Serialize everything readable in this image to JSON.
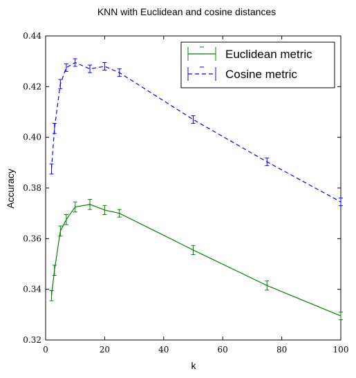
{
  "chart_data": {
    "type": "line",
    "title": "KNN with Euclidean and cosine distances",
    "xlabel": "k",
    "ylabel": "Accuracy",
    "xlim": [
      0,
      100
    ],
    "ylim": [
      0.32,
      0.44
    ],
    "x_ticks": [
      "0",
      "20",
      "40",
      "60",
      "80",
      "100"
    ],
    "y_ticks": [
      "0.32",
      "0.34",
      "0.36",
      "0.38",
      "0.40",
      "0.42",
      "0.44"
    ],
    "grid": false,
    "legend_position": "top-right",
    "series": [
      {
        "name": "Euclidean metric",
        "color": "#008000",
        "linestyle": "solid",
        "x": [
          2,
          3,
          5,
          7,
          10,
          15,
          20,
          25,
          50,
          75,
          100
        ],
        "y": [
          0.3375,
          0.3475,
          0.363,
          0.3675,
          0.3725,
          0.3735,
          0.3713,
          0.37,
          0.3555,
          0.3415,
          0.3295
        ],
        "err": [
          0.002,
          0.002,
          0.002,
          0.002,
          0.002,
          0.002,
          0.0018,
          0.0015,
          0.0018,
          0.0018,
          0.0015
        ]
      },
      {
        "name": "Cosine metric",
        "color": "#0000ff",
        "linestyle": "dashed",
        "x": [
          2,
          3,
          5,
          7,
          10,
          15,
          20,
          25,
          50,
          75,
          100
        ],
        "y": [
          0.3875,
          0.4035,
          0.421,
          0.4275,
          0.4295,
          0.427,
          0.428,
          0.4255,
          0.407,
          0.3903,
          0.3745
        ],
        "err": [
          0.002,
          0.002,
          0.0018,
          0.0015,
          0.0015,
          0.0015,
          0.0015,
          0.0015,
          0.0015,
          0.0015,
          0.0015
        ]
      }
    ]
  }
}
